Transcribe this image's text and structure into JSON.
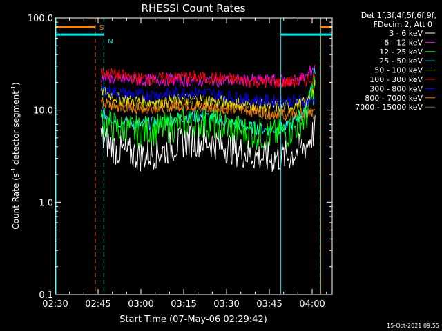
{
  "colors": {
    "background": "#000000",
    "axes": "#ffffff",
    "marker_S": "#ff7f00",
    "marker_N": "#00e5e5"
  },
  "chart_data": {
    "type": "line",
    "title": "RHESSI Count Rates",
    "xlabel": "Start Time (07-May-06 02:29:42)",
    "ylabel": "Count Rate (s^-1 detector segment^-1)",
    "ylabel_main": "Count Rate (s",
    "ylabel_sup1": "-1",
    "ylabel_mid": " detector segment",
    "ylabel_sup2": "-1",
    "ylabel_end": ")",
    "timestamp": "15-Oct-2021 09:55",
    "yscale": "log",
    "ylim": [
      0.1,
      100.0
    ],
    "xlim": [
      "02:30",
      "04:07"
    ],
    "x_ticks": [
      "02:30",
      "02:45",
      "03:00",
      "03:15",
      "03:30",
      "03:45",
      "04:00"
    ],
    "y_ticks": [
      "0.1",
      "1.0",
      "10.0",
      "100.0"
    ],
    "legend_header": [
      "Det 1f,3f,4f,5f,6f,9f,",
      "FDecim 2, Att 0"
    ],
    "legend_position": "top-right outside",
    "markers": [
      {
        "label": "S",
        "color": "#ff7f00",
        "level": 80,
        "until": "02:44",
        "resumes": "04:03"
      },
      {
        "label": "N",
        "color": "#00e5e5",
        "level": 66,
        "until": "02:47",
        "resumes": "03:49"
      }
    ],
    "series_x": [
      "02:46",
      "02:52",
      "03:00",
      "03:08",
      "03:15",
      "03:22",
      "03:30",
      "03:38",
      "03:45",
      "03:52",
      "03:58",
      "04:01"
    ],
    "series": [
      {
        "name": "3 - 6 keV",
        "color": "#ffffff",
        "values": [
          5.0,
          3.6,
          3.2,
          3.6,
          4.6,
          4.7,
          4.0,
          3.3,
          3.0,
          3.2,
          4.2,
          6.0
        ]
      },
      {
        "name": "6 - 12 keV",
        "color": "#ff00ff",
        "values": [
          23.0,
          21.5,
          21.0,
          21.5,
          21.0,
          21.0,
          21.0,
          21.0,
          21.0,
          20.5,
          23.0,
          31.0
        ]
      },
      {
        "name": "12 - 25 keV",
        "color": "#00ff00",
        "values": [
          7.5,
          6.3,
          5.8,
          6.3,
          7.0,
          7.3,
          6.5,
          5.7,
          5.3,
          5.8,
          8.5,
          20.0
        ]
      },
      {
        "name": "25 - 50 keV",
        "color": "#00ffff",
        "values": [
          9.5,
          7.5,
          7.0,
          7.5,
          8.5,
          8.5,
          7.5,
          6.5,
          6.1,
          6.6,
          10.5,
          28.0
        ]
      },
      {
        "name": "50 - 100 keV",
        "color": "#e6e600",
        "values": [
          16.5,
          13.5,
          12.3,
          12.3,
          13.0,
          13.0,
          12.2,
          11.5,
          11.0,
          11.0,
          12.0,
          18.0
        ]
      },
      {
        "name": "100 - 300 keV",
        "color": "#ff0000",
        "values": [
          26.0,
          24.0,
          22.0,
          22.0,
          23.0,
          22.5,
          22.0,
          20.5,
          20.0,
          20.0,
          21.0,
          23.0
        ]
      },
      {
        "name": "300 - 800 keV",
        "color": "#0000ff",
        "values": [
          17.0,
          15.5,
          14.5,
          14.8,
          15.5,
          15.5,
          14.2,
          13.0,
          12.5,
          12.5,
          12.5,
          13.0
        ]
      },
      {
        "name": "800 - 7000 keV",
        "color": "#ff7f00",
        "values": [
          12.0,
          11.0,
          10.5,
          11.0,
          11.5,
          11.0,
          10.5,
          10.0,
          9.3,
          9.0,
          9.0,
          9.2
        ]
      },
      {
        "name": "7000 - 15000 keV",
        "color": "#8b6914",
        "values": [
          12.0,
          11.0,
          10.5,
          11.0,
          11.5,
          11.0,
          10.5,
          10.0,
          9.3,
          9.0,
          9.0,
          9.2
        ]
      }
    ]
  }
}
